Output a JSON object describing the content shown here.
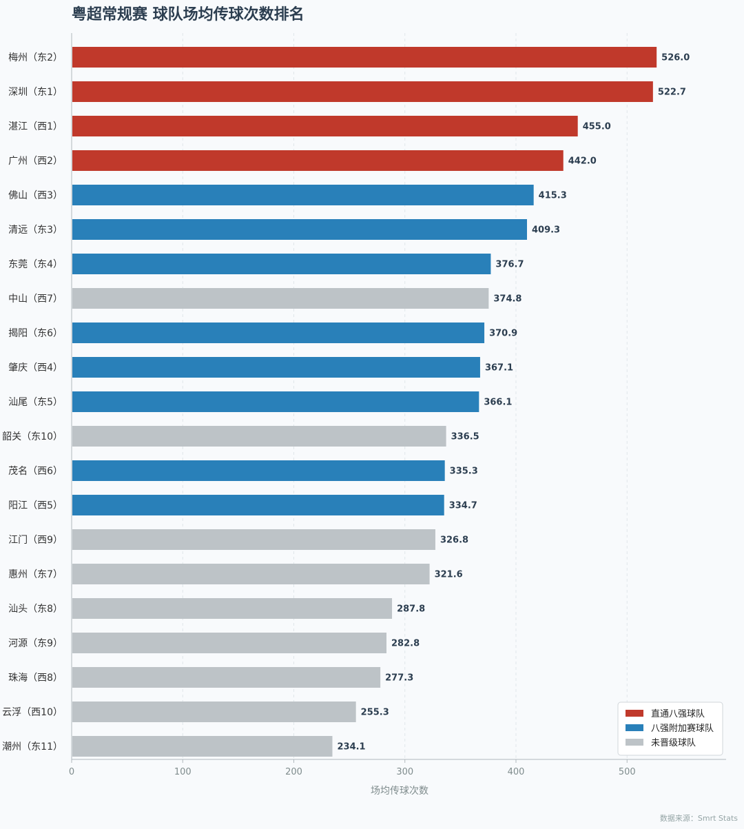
{
  "chart_data": {
    "type": "bar",
    "orientation": "horizontal",
    "title": "粤超常规赛 球队场均传球次数排名",
    "xlabel": "场均传球次数",
    "xlim": [
      0,
      585
    ],
    "xticks": [
      0,
      100,
      200,
      300,
      400,
      500
    ],
    "grid": "vertical-dashed",
    "legend_position": "bottom-right",
    "source": "数据来源：Smrt Stats",
    "groups": [
      {
        "key": "direct",
        "name": "直通八强球队",
        "color": "#c0392b"
      },
      {
        "key": "playoff",
        "name": "八强附加赛球队",
        "color": "#2980b9"
      },
      {
        "key": "out",
        "name": "未晋级球队",
        "color": "#bdc3c7"
      }
    ],
    "bars": [
      {
        "label": "梅州（东2）",
        "value": 526.0,
        "value_label": "526.0",
        "group": "direct"
      },
      {
        "label": "深圳（东1）",
        "value": 522.7,
        "value_label": "522.7",
        "group": "direct"
      },
      {
        "label": "湛江（西1）",
        "value": 455.0,
        "value_label": "455.0",
        "group": "direct"
      },
      {
        "label": "广州（西2）",
        "value": 442.0,
        "value_label": "442.0",
        "group": "direct"
      },
      {
        "label": "佛山（西3）",
        "value": 415.3,
        "value_label": "415.3",
        "group": "playoff"
      },
      {
        "label": "清远（东3）",
        "value": 409.3,
        "value_label": "409.3",
        "group": "playoff"
      },
      {
        "label": "东莞（东4）",
        "value": 376.7,
        "value_label": "376.7",
        "group": "playoff"
      },
      {
        "label": "中山（西7）",
        "value": 374.8,
        "value_label": "374.8",
        "group": "out"
      },
      {
        "label": "揭阳（东6）",
        "value": 370.9,
        "value_label": "370.9",
        "group": "playoff"
      },
      {
        "label": "肇庆（西4）",
        "value": 367.1,
        "value_label": "367.1",
        "group": "playoff"
      },
      {
        "label": "汕尾（东5）",
        "value": 366.1,
        "value_label": "366.1",
        "group": "playoff"
      },
      {
        "label": "韶关（东10）",
        "value": 336.5,
        "value_label": "336.5",
        "group": "out"
      },
      {
        "label": "茂名（西6）",
        "value": 335.3,
        "value_label": "335.3",
        "group": "playoff"
      },
      {
        "label": "阳江（西5）",
        "value": 334.7,
        "value_label": "334.7",
        "group": "playoff"
      },
      {
        "label": "江门（西9）",
        "value": 326.8,
        "value_label": "326.8",
        "group": "out"
      },
      {
        "label": "惠州（东7）",
        "value": 321.6,
        "value_label": "321.6",
        "group": "out"
      },
      {
        "label": "汕头（东8）",
        "value": 287.8,
        "value_label": "287.8",
        "group": "out"
      },
      {
        "label": "河源（东9）",
        "value": 282.8,
        "value_label": "282.8",
        "group": "out"
      },
      {
        "label": "珠海（西8）",
        "value": 277.3,
        "value_label": "277.3",
        "group": "out"
      },
      {
        "label": "云浮（西10）",
        "value": 255.3,
        "value_label": "255.3",
        "group": "out"
      },
      {
        "label": "潮州（东11）",
        "value": 234.1,
        "value_label": "234.1",
        "group": "out"
      }
    ]
  }
}
